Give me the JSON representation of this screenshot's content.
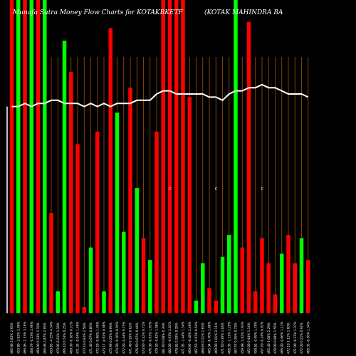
{
  "chart_data": {
    "type": "bar",
    "title": "Munafa Sutra  Money Flow  Charts for KOTAKBKETF",
    "subtitle": "(KOTAK MAHINDRA BA",
    "ylim": [
      0,
      100
    ],
    "grid": "vertical",
    "colors": {
      "up": "#00ff00",
      "down": "#ff0000",
      "line": "#ffffff",
      "grid": "#a0520e",
      "background": "#000000"
    },
    "categories": [
      "466.90 2.85% 2.95%",
      "453.80 -2.82% 2.98%",
      "466.96 -2.53% 3.16%",
      "468.79 -0.23% 2.96%",
      "469.00 0.33% 1.19%",
      "466.98 2.87% 2.95%",
      "453.85 -4.25% 4.34%",
      "473.95 0.21% 1.18%",
      "466.10 0.53% 0.75%",
      "469.30 -0.58% 0.51%",
      "471.35 -0.94% 1.49%",
      "473.10 0.82% 2.58%",
      "471.46 0.67% 0.86%",
      "472.50 -0.88% 1.36%",
      "473.17 -0.62% 0.98%",
      "475.99 0.25% 0.69%",
      "474.00 -0.36% 0.95%",
      "472.00 -0.44% 0.75%",
      "471.40 0.35% 0.62%",
      "476.60 0.07% 0.44%",
      "474.60 -0.42% 0.72%",
      "476.30 -0.63% 1.93%",
      "479.30 -0.82% 1.08%",
      "481.60 0.08% 0.39%",
      "482.00 -0.63% 2.02%",
      "478.85 0.20% 0.35%",
      "471.95 -1.44% 1.54%",
      "469.95 -0.48% 2.49%",
      "467.63 -0.63% 0.64%",
      "468.63 0.21% 1.65%",
      "465.34 -0.70% 1.88%",
      "469.90 1.01% 2.11%",
      "471.60 0.36% 1.04%",
      "466.35 -1.11% 1.29%",
      "467.57 0.26% 0.73%",
      "459.98 -1.62% 1.93%",
      "462.00 0.44% 1.14%",
      "458.82 -0.69% 1.70%",
      "457.70 -0.24% 0.92%",
      "465.40 1.68% 2.29%",
      "470.00 0.99% 1.56%",
      "466.90 -0.66% 1.12%",
      "472.10 1.11% 1.60%",
      "471.00 -0.23% 1.37%",
      "472.00 0.21% 0.97%",
      "469.35 -0.56% 1.34%"
    ],
    "series": [
      {
        "values": [
          100,
          100,
          100,
          100,
          100,
          100,
          32,
          7,
          87,
          77,
          54,
          2,
          21,
          58,
          7,
          91,
          64,
          26,
          72,
          40,
          24,
          17,
          58,
          100,
          100,
          100,
          100,
          69,
          4,
          16,
          8,
          4,
          18,
          25,
          100,
          21,
          93,
          7,
          24,
          16,
          6,
          19,
          25,
          16,
          24,
          17
        ]
      }
    ],
    "up": [
      false,
      true,
      false,
      true,
      false,
      true,
      false,
      true,
      true,
      false,
      false,
      false,
      true,
      false,
      true,
      false,
      true,
      true,
      false,
      true,
      false,
      true,
      false,
      false,
      false,
      false,
      false,
      false,
      true,
      true,
      false,
      false,
      true,
      true,
      true,
      false,
      false,
      false,
      false,
      false,
      false,
      true,
      false,
      false,
      true,
      false
    ],
    "line": [
      66,
      66,
      67,
      66,
      67,
      67,
      68,
      68,
      67,
      67,
      67,
      66,
      67,
      66,
      67,
      66,
      67,
      67,
      67,
      68,
      68,
      68,
      70,
      71,
      71,
      70,
      70,
      70,
      70,
      70,
      69,
      69,
      68,
      70,
      71,
      71,
      72,
      72,
      73,
      72,
      72,
      71,
      70,
      70,
      70,
      69
    ],
    "markers": [
      {
        "label": "C",
        "index": 24
      },
      {
        "label": "C",
        "index": 31
      },
      {
        "label": "C",
        "index": 38
      }
    ]
  }
}
